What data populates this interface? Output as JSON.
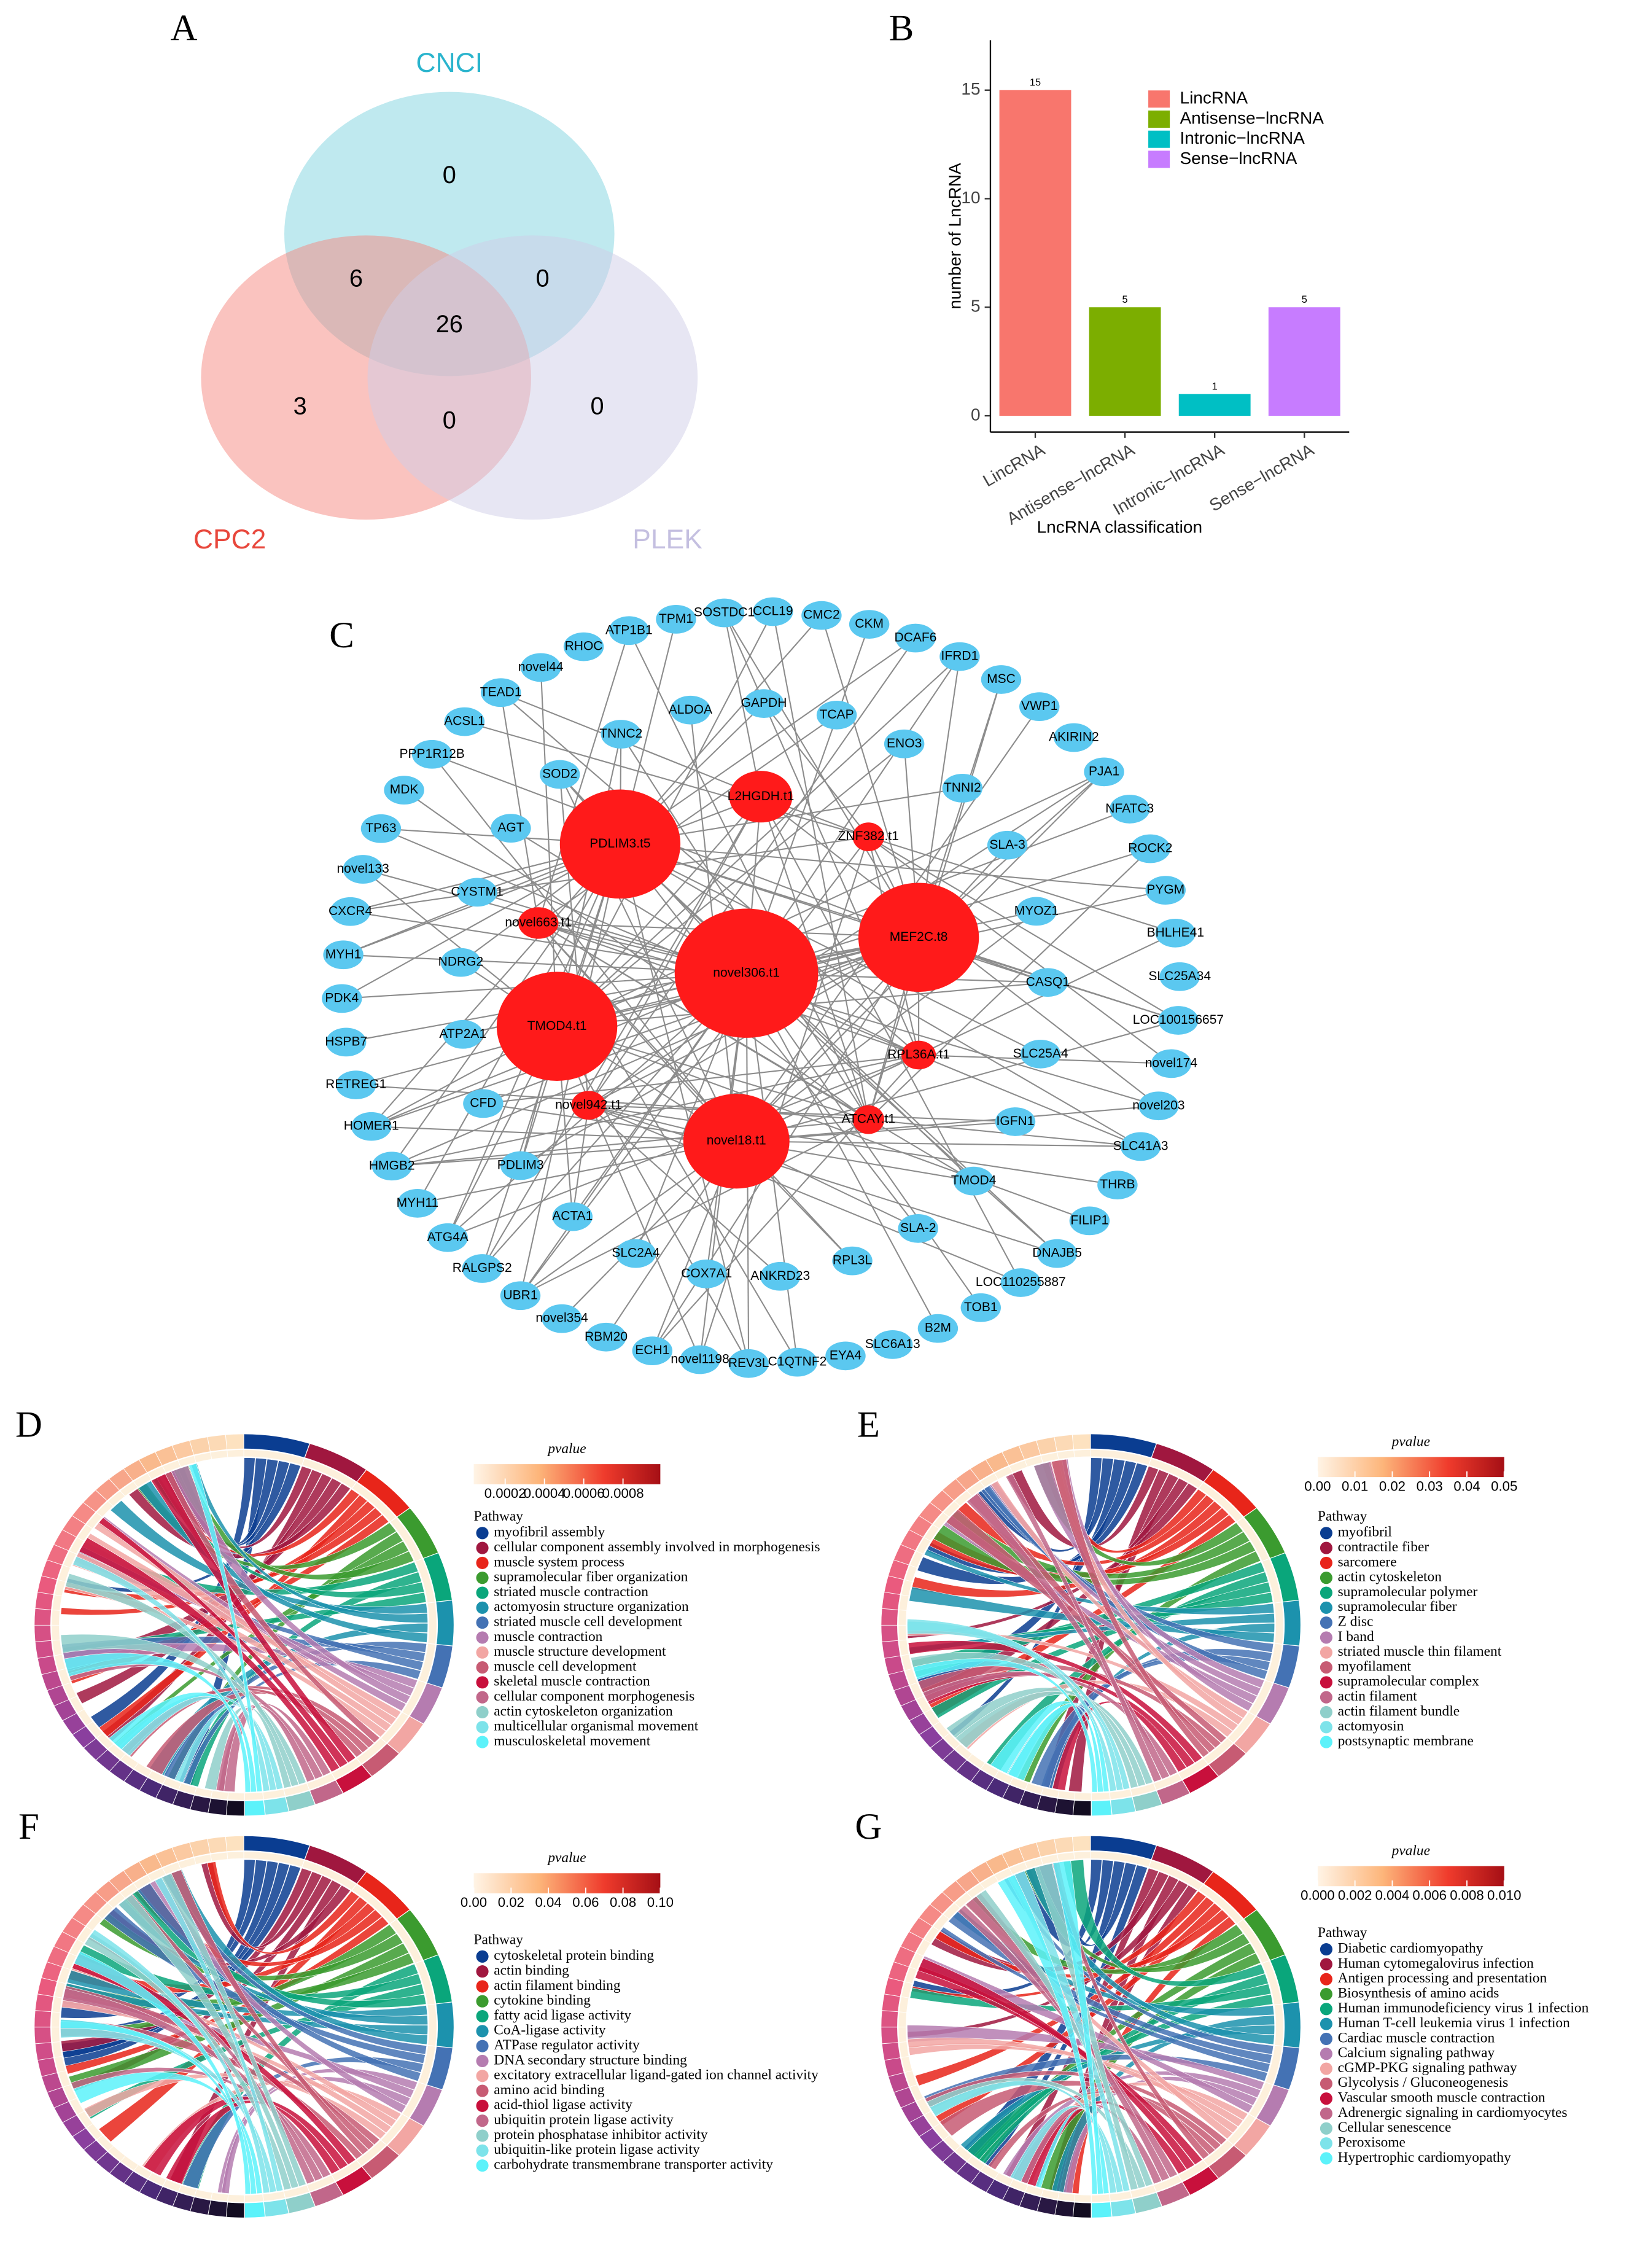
{
  "chart_data": [
    {
      "type": "venn",
      "panel": "A",
      "sets": [
        {
          "name": "CNCI",
          "color": "#7fd3e0",
          "label_color": "#2ab4cd"
        },
        {
          "name": "CPC2",
          "color": "#f5877f",
          "label_color": "#e8473c"
        },
        {
          "name": "PLEK",
          "color": "#cfcde8",
          "label_color": "#c4bfe0"
        }
      ],
      "values": [
        0,
        6,
        0,
        26,
        3,
        0,
        0
      ]
    },
    {
      "type": "bar",
      "panel": "B",
      "xlabel": "LncRNA classification",
      "ylabel": "number of LncRNA",
      "categories": [
        "LincRNA",
        "Antisense−lncRNA",
        "Intronic−lncRNA",
        "Sense−lncRNA"
      ],
      "values": [
        15,
        5,
        1,
        5
      ],
      "colors": [
        "#f8766d",
        "#7cae00",
        "#00bfc4",
        "#c77cff"
      ],
      "ylim": [
        -0.75,
        17.3
      ],
      "yticks": [
        0,
        5,
        10,
        15
      ],
      "legend": "right"
    },
    {
      "type": "network",
      "panel": "C",
      "hub_color": "#ff1a1a",
      "node_color": "#5bc8f0",
      "hubs": [
        "L2HGDH.t1",
        "ZNF382.t1",
        "PDLIM3.t5",
        "novel663.t1",
        "novel306.t1",
        "MEF2C.t8",
        "TMOD4.t1",
        "RPL36A.t1",
        "novel942.t1",
        "ATCAY.t1",
        "novel18.t1"
      ],
      "inner": [
        "GAPDH",
        "TCAP",
        "ENO3",
        "TNNI2",
        "SLA-3",
        "MYOZ1",
        "CASQ1",
        "SLC25A4",
        "IGFN1",
        "TMOD4",
        "SLA-2",
        "RPL3L",
        "ANKRD23",
        "COX7A1",
        "SLC2A4",
        "ACTA1",
        "PDLIM3",
        "CFD",
        "ATP2A1",
        "NDRG2",
        "CYSTM1",
        "AGT",
        "SOD2",
        "TNNC2",
        "ALDOA"
      ],
      "outer": [
        "SOSTDC1",
        "CCL19",
        "CMC2",
        "CKM",
        "DCAF6",
        "IFRD1",
        "MSC",
        "VWP1",
        "AKIRIN2",
        "PJA1",
        "NFATC3",
        "ROCK2",
        "PYGM",
        "BHLHE41",
        "SLC25A34",
        "LOC100156657",
        "novel174",
        "novel203",
        "SLC41A3",
        "THRB",
        "FILIP1",
        "DNAJB5",
        "LOC110255887",
        "TOB1",
        "B2M",
        "SLC6A13",
        "EYA4",
        "C1QTNF2",
        "REV3L",
        "novel1198",
        "ECH1",
        "RBM20",
        "novel354",
        "UBR1",
        "RALGPS2",
        "ATG4A",
        "MYH11",
        "HMGB2",
        "HOMER1",
        "RETREG1",
        "HSPB7",
        "PDK4",
        "MYH1",
        "CXCR4",
        "novel133",
        "TP63",
        "MDK",
        "PPP1R12B",
        "ACSL1",
        "TEAD1",
        "novel44",
        "RHOC",
        "ATP1B1",
        "TPM1"
      ]
    },
    {
      "type": "chord",
      "panel": "D",
      "colorbar_title": "pvalue",
      "colorbar_lim": [
        4e-05,
        0.00099
      ],
      "colorbar_ticks": [
        0.0002,
        0.0004,
        0.0006,
        0.0008
      ],
      "legend_title": "Pathway",
      "series": [
        {
          "name": "myofibril assembly",
          "color": "#0a3d91"
        },
        {
          "name": "cellular component assembly involved in morphogenesis",
          "color": "#a0173f"
        },
        {
          "name": "muscle system process",
          "color": "#e8251a"
        },
        {
          "name": "supramolecular fiber organization",
          "color": "#3b9b2f"
        },
        {
          "name": "striated muscle contraction",
          "color": "#0aa67b"
        },
        {
          "name": "actomyosin structure organization",
          "color": "#1c92ad"
        },
        {
          "name": "striated muscle cell development",
          "color": "#4472b4"
        },
        {
          "name": "muscle contraction",
          "color": "#b57cb0"
        },
        {
          "name": "muscle structure development",
          "color": "#f2a6a3"
        },
        {
          "name": "muscle cell development",
          "color": "#c75b73"
        },
        {
          "name": "skeletal muscle contraction",
          "color": "#c8103c"
        },
        {
          "name": "cellular component morphogenesis",
          "color": "#c1678a"
        },
        {
          "name": "actin cytoskeleton organization",
          "color": "#8fcfca"
        },
        {
          "name": "multicellular organismal movement",
          "color": "#7de3ea"
        },
        {
          "name": "musculoskeletal movement",
          "color": "#5cf2fa"
        }
      ]
    },
    {
      "type": "chord",
      "panel": "E",
      "colorbar_title": "pvalue",
      "colorbar_lim": [
        0,
        0.05
      ],
      "colorbar_ticks": [
        {
          "value": 0,
          "label": "0.00"
        },
        {
          "value": 0.01,
          "label": "0.01"
        },
        {
          "value": 0.02,
          "label": "0.02"
        },
        {
          "value": 0.03,
          "label": "0.03"
        },
        {
          "value": 0.04,
          "label": "0.04"
        },
        {
          "value": 0.05,
          "label": "0.05"
        }
      ],
      "legend_title": "Pathway",
      "series": [
        {
          "name": "myofibril",
          "color": "#0a3d91"
        },
        {
          "name": "contractile fiber",
          "color": "#a0173f"
        },
        {
          "name": "sarcomere",
          "color": "#e8251a"
        },
        {
          "name": "actin cytoskeleton",
          "color": "#3b9b2f"
        },
        {
          "name": "supramolecular polymer",
          "color": "#0aa67b"
        },
        {
          "name": "supramolecular fiber",
          "color": "#1c92ad"
        },
        {
          "name": "Z disc",
          "color": "#4472b4"
        },
        {
          "name": "I band",
          "color": "#b57cb0"
        },
        {
          "name": "striated muscle thin filament",
          "color": "#f2a6a3"
        },
        {
          "name": "myofilament",
          "color": "#c75b73"
        },
        {
          "name": "supramolecular complex",
          "color": "#c8103c"
        },
        {
          "name": "actin filament",
          "color": "#c1678a"
        },
        {
          "name": "actin filament bundle",
          "color": "#8fcfca"
        },
        {
          "name": "actomyosin",
          "color": "#7de3ea"
        },
        {
          "name": "postsynaptic membrane",
          "color": "#5cf2fa"
        }
      ]
    },
    {
      "type": "chord",
      "panel": "F",
      "colorbar_title": "pvalue",
      "colorbar_lim": [
        0,
        0.1
      ],
      "colorbar_ticks": [
        {
          "value": 0,
          "label": "0.00"
        },
        {
          "value": 0.02,
          "label": "0.02"
        },
        {
          "value": 0.04,
          "label": "0.04"
        },
        {
          "value": 0.06,
          "label": "0.06"
        },
        {
          "value": 0.08,
          "label": "0.08"
        },
        {
          "value": 0.1,
          "label": "0.10"
        }
      ],
      "legend_title": "Pathway",
      "series": [
        {
          "name": "cytoskeletal protein binding",
          "color": "#0a3d91"
        },
        {
          "name": "actin binding",
          "color": "#a0173f"
        },
        {
          "name": "actin filament binding",
          "color": "#e8251a"
        },
        {
          "name": "cytokine binding",
          "color": "#3b9b2f"
        },
        {
          "name": "fatty acid ligase activity",
          "color": "#0aa67b"
        },
        {
          "name": "CoA-ligase activity",
          "color": "#1c92ad"
        },
        {
          "name": "ATPase regulator activity",
          "color": "#4472b4"
        },
        {
          "name": "DNA secondary structure binding",
          "color": "#b57cb0"
        },
        {
          "name": "excitatory extracellular ligand-gated ion channel activity",
          "color": "#f2a6a3"
        },
        {
          "name": "amino acid binding",
          "color": "#c75b73"
        },
        {
          "name": "acid-thiol ligase activity",
          "color": "#c8103c"
        },
        {
          "name": "ubiquitin protein ligase activity",
          "color": "#c1678a"
        },
        {
          "name": "protein phosphatase inhibitor activity",
          "color": "#8fcfca"
        },
        {
          "name": "ubiquitin-like protein ligase activity",
          "color": "#7de3ea"
        },
        {
          "name": "carbohydrate transmembrane transporter activity",
          "color": "#5cf2fa"
        }
      ]
    },
    {
      "type": "chord",
      "panel": "G",
      "colorbar_title": "pvalue",
      "colorbar_lim": [
        0,
        0.01
      ],
      "colorbar_ticks": [
        {
          "value": 0,
          "label": "0.000"
        },
        {
          "value": 0.002,
          "label": "0.002"
        },
        {
          "value": 0.004,
          "label": "0.004"
        },
        {
          "value": 0.006,
          "label": "0.006"
        },
        {
          "value": 0.008,
          "label": "0.008"
        },
        {
          "value": 0.01,
          "label": "0.010"
        }
      ],
      "legend_title": "Pathway",
      "series": [
        {
          "name": "Diabetic cardiomyopathy",
          "color": "#0a3d91"
        },
        {
          "name": "Human cytomegalovirus infection",
          "color": "#a0173f"
        },
        {
          "name": "Antigen processing and presentation",
          "color": "#e8251a"
        },
        {
          "name": "Biosynthesis of amino acids",
          "color": "#3b9b2f"
        },
        {
          "name": "Human immunodeficiency virus 1 infection",
          "color": "#0aa67b"
        },
        {
          "name": "Human T-cell leukemia virus 1 infection",
          "color": "#1c92ad"
        },
        {
          "name": "Cardiac muscle contraction",
          "color": "#4472b4"
        },
        {
          "name": "Calcium signaling pathway",
          "color": "#b57cb0"
        },
        {
          "name": "cGMP-PKG signaling pathway",
          "color": "#f2a6a3"
        },
        {
          "name": "Glycolysis / Gluconeogenesis",
          "color": "#c75b73"
        },
        {
          "name": "Vascular smooth muscle contraction",
          "color": "#c8103c"
        },
        {
          "name": "Adrenergic signaling in cardiomyocytes",
          "color": "#c1678a"
        },
        {
          "name": "Cellular senescence",
          "color": "#8fcfca"
        },
        {
          "name": "Peroxisome",
          "color": "#7de3ea"
        },
        {
          "name": "Hypertrophic cardiomyopathy",
          "color": "#5cf2fa"
        }
      ]
    }
  ]
}
